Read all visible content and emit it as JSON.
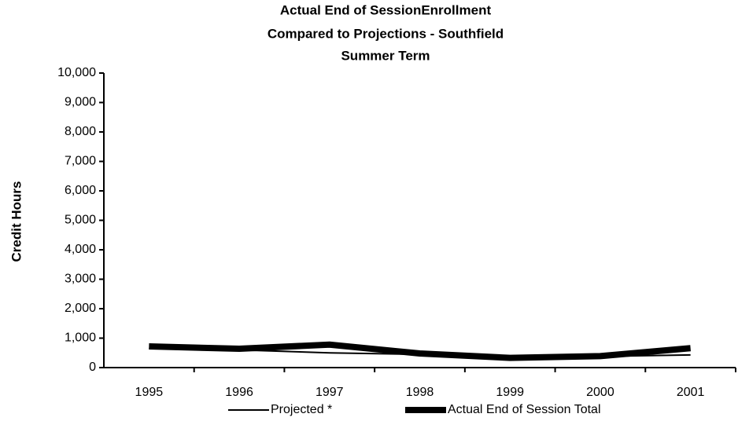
{
  "chart_data": {
    "type": "line",
    "title": [
      "Actual End of SessionEnrollment",
      "Compared to Projections - Southfield",
      "Summer Term"
    ],
    "ylabel": "Credit Hours",
    "categories": [
      "1995",
      "1996",
      "1997",
      "1998",
      "1999",
      "2000",
      "2001"
    ],
    "series": [
      {
        "name": "Projected *",
        "color": "#000000",
        "width": 2,
        "values": [
          650,
          600,
          500,
          450,
          320,
          380,
          430
        ]
      },
      {
        "name": "Actual End of Session Total",
        "color": "#000000",
        "width": 8,
        "values": [
          720,
          640,
          780,
          480,
          330,
          390,
          660
        ]
      }
    ],
    "ylim": [
      0,
      10000
    ],
    "yticks": [
      0,
      {
        "value": 1000,
        "label": "1,000"
      },
      {
        "value": 2000,
        "label": "2,000"
      },
      {
        "value": 3000,
        "label": "3,000"
      },
      {
        "value": 4000,
        "label": "4,000"
      },
      {
        "value": 5000,
        "label": "5,000"
      },
      {
        "value": 6000,
        "label": "6,000"
      },
      {
        "value": 7000,
        "label": "7,000"
      },
      {
        "value": 8000,
        "label": "8,000"
      },
      {
        "value": 9000,
        "label": "9,000"
      },
      {
        "value": 10000,
        "label": "10,000"
      }
    ],
    "grid": false,
    "legend": "bottom"
  }
}
